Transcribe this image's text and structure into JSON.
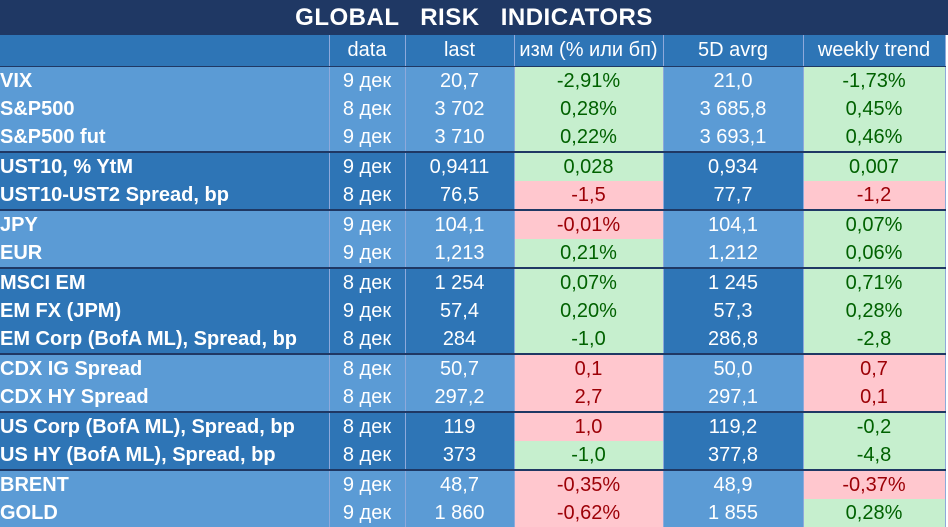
{
  "title": "GLOBAL   RISK   INDICATORS",
  "headers": [
    "",
    "data",
    "last",
    "изм (% или бп)",
    "5D avrg",
    "weekly trend"
  ],
  "groups": [
    {
      "tone": "light",
      "rows": [
        {
          "name": "VIX",
          "date": "9 дек",
          "last": "20,7",
          "change": "-2,91%",
          "change_tone": "pos",
          "avg5d": "21,0",
          "trend": "-1,73%",
          "trend_tone": "pos"
        },
        {
          "name": "S&P500",
          "date": "8 дек",
          "last": "3 702",
          "change": "0,28%",
          "change_tone": "pos",
          "avg5d": "3 685,8",
          "trend": "0,45%",
          "trend_tone": "pos"
        },
        {
          "name": "S&P500 fut",
          "date": "9 дек",
          "last": "3 710",
          "change": "0,22%",
          "change_tone": "pos",
          "avg5d": "3 693,1",
          "trend": "0,46%",
          "trend_tone": "pos"
        }
      ]
    },
    {
      "tone": "dark",
      "rows": [
        {
          "name": "UST10, % YtM",
          "date": "9 дек",
          "last": "0,9411",
          "change": "0,028",
          "change_tone": "pos",
          "avg5d": "0,934",
          "trend": "0,007",
          "trend_tone": "pos"
        },
        {
          "name": "UST10-UST2 Spread, bp",
          "date": "8 дек",
          "last": "76,5",
          "change": "-1,5",
          "change_tone": "neg",
          "avg5d": "77,7",
          "trend": "-1,2",
          "trend_tone": "neg"
        }
      ]
    },
    {
      "tone": "light",
      "rows": [
        {
          "name": "JPY",
          "date": "9 дек",
          "last": "104,1",
          "change": "-0,01%",
          "change_tone": "neg",
          "avg5d": "104,1",
          "trend": "0,07%",
          "trend_tone": "pos"
        },
        {
          "name": "EUR",
          "date": "9 дек",
          "last": "1,213",
          "change": "0,21%",
          "change_tone": "pos",
          "avg5d": "1,212",
          "trend": "0,06%",
          "trend_tone": "pos"
        }
      ]
    },
    {
      "tone": "dark",
      "rows": [
        {
          "name": "MSCI EM",
          "date": "8 дек",
          "last": "1 254",
          "change": "0,07%",
          "change_tone": "pos",
          "avg5d": "1 245",
          "trend": "0,71%",
          "trend_tone": "pos"
        },
        {
          "name": "EM FX (JPM)",
          "date": "9 дек",
          "last": "57,4",
          "change": "0,20%",
          "change_tone": "pos",
          "avg5d": "57,3",
          "trend": "0,28%",
          "trend_tone": "pos"
        },
        {
          "name": "EM Corp (BofA ML), Spread, bp",
          "date": "8 дек",
          "last": "284",
          "change": "-1,0",
          "change_tone": "pos",
          "avg5d": "286,8",
          "trend": "-2,8",
          "trend_tone": "pos"
        }
      ]
    },
    {
      "tone": "light",
      "rows": [
        {
          "name": "CDX IG Spread",
          "date": "8 дек",
          "last": "50,7",
          "change": "0,1",
          "change_tone": "neg",
          "avg5d": "50,0",
          "trend": "0,7",
          "trend_tone": "neg"
        },
        {
          "name": "CDX HY Spread",
          "date": "8 дек",
          "last": "297,2",
          "change": "2,7",
          "change_tone": "neg",
          "avg5d": "297,1",
          "trend": "0,1",
          "trend_tone": "neg"
        }
      ]
    },
    {
      "tone": "dark",
      "rows": [
        {
          "name": "US Corp (BofA ML), Spread, bp",
          "date": "8 дек",
          "last": "119",
          "change": "1,0",
          "change_tone": "neg",
          "avg5d": "119,2",
          "trend": "-0,2",
          "trend_tone": "pos"
        },
        {
          "name": "US HY (BofA ML), Spread, bp",
          "date": "8 дек",
          "last": "373",
          "change": "-1,0",
          "change_tone": "pos",
          "avg5d": "377,8",
          "trend": "-4,8",
          "trend_tone": "pos"
        }
      ]
    },
    {
      "tone": "light",
      "rows": [
        {
          "name": "BRENT",
          "date": "9 дек",
          "last": "48,7",
          "change": "-0,35%",
          "change_tone": "neg",
          "avg5d": "48,9",
          "trend": "-0,37%",
          "trend_tone": "neg"
        },
        {
          "name": "GOLD",
          "date": "9 дек",
          "last": "1 860",
          "change": "-0,62%",
          "change_tone": "neg",
          "avg5d": "1 855",
          "trend": "0,28%",
          "trend_tone": "pos"
        }
      ]
    }
  ],
  "colors": {
    "title_bg": "#1f3864",
    "header_bg": "#2e75b6",
    "row_light": "#5b9bd5",
    "row_dark": "#2e75b6",
    "positive_bg": "#c6efce",
    "positive_text": "#006100",
    "negative_bg": "#ffc7ce",
    "negative_text": "#9c0006"
  }
}
